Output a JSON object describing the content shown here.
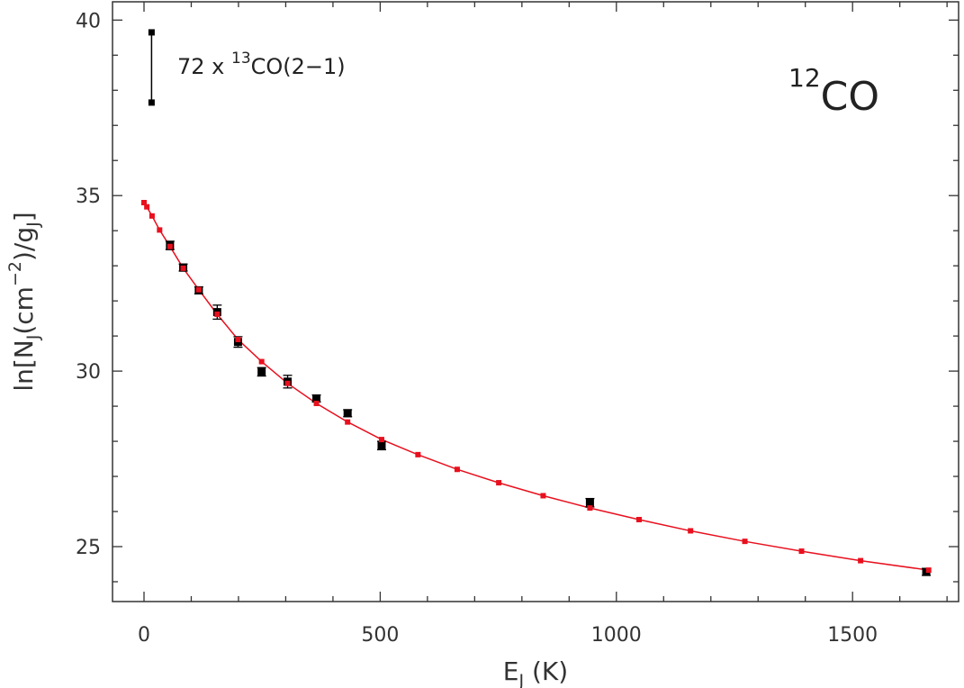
{
  "chart_data": {
    "type": "scatter",
    "title": "",
    "xlabel_main": "E",
    "xlabel_sub": "J",
    "xlabel_units": " (K)",
    "ylabel_pre": "ln[N",
    "ylabel_sub1": "J",
    "ylabel_mid": "(cm",
    "ylabel_sup": "−2",
    "ylabel_mid2": ")/g",
    "ylabel_sub2": "J",
    "ylabel_post": "]",
    "xlim": [
      -65,
      1740
    ],
    "ylim": [
      23.4,
      40.6
    ],
    "xticks": [
      0,
      500,
      1000,
      1500
    ],
    "xtick_labels": [
      "0",
      "500",
      "1000",
      "1500"
    ],
    "yticks": [
      25,
      30,
      35,
      40
    ],
    "ytick_labels": [
      "25",
      "30",
      "35",
      "40"
    ],
    "grid": false,
    "annotation_species_sup": "12",
    "annotation_species": "CO",
    "errorbar_annotation": {
      "x": 16,
      "y_low": 37.65,
      "y_high": 39.65,
      "label_pre": "72 x ",
      "label_sup": "13",
      "label_post": "CO(2−1)"
    },
    "series": [
      {
        "marker": "square",
        "color": "#000000",
        "points": [
          {
            "x": 55,
            "y": 33.58,
            "err": 0.12
          },
          {
            "x": 83,
            "y": 32.95,
            "err": 0.1
          },
          {
            "x": 116,
            "y": 32.3,
            "err": 0.1
          },
          {
            "x": 155,
            "y": 31.68,
            "err": 0.2
          },
          {
            "x": 199,
            "y": 30.83,
            "err": 0.15
          },
          {
            "x": 249,
            "y": 29.98,
            "err": 0.12
          },
          {
            "x": 304,
            "y": 29.7,
            "err": 0.18
          },
          {
            "x": 365,
            "y": 29.22,
            "err": 0.1
          },
          {
            "x": 431,
            "y": 28.8,
            "err": 0.1
          },
          {
            "x": 503,
            "y": 27.88,
            "err": 0.12
          },
          {
            "x": 944,
            "y": 26.25,
            "err": 0.12
          },
          {
            "x": 1656,
            "y": 24.28,
            "err": 0.1
          }
        ]
      },
      {
        "marker": "square",
        "color": "#e8101e",
        "model_x": [
          0,
          6,
          17,
          33,
          55,
          83,
          116,
          155,
          199,
          249,
          304,
          365,
          431,
          503,
          580,
          663,
          751,
          845,
          944,
          1048,
          1157,
          1272,
          1392,
          1517,
          1661
        ],
        "model_y": [
          34.8,
          34.68,
          34.42,
          34.02,
          33.55,
          32.93,
          32.32,
          31.62,
          30.9,
          30.27,
          29.65,
          29.08,
          28.55,
          28.05,
          27.62,
          27.2,
          26.82,
          26.45,
          26.1,
          25.77,
          25.45,
          25.15,
          24.87,
          24.6,
          24.33
        ]
      }
    ]
  }
}
